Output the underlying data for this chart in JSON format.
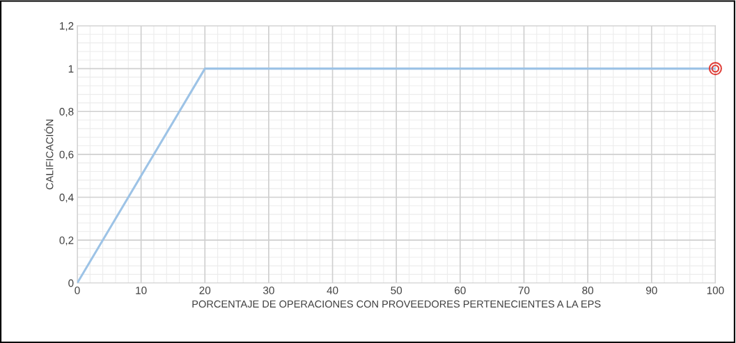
{
  "chart_data": {
    "type": "line",
    "xlabel": "PORCENTAJE DE OPERACIONES CON PROVEEDORES PERTENECIENTES A LA EPS",
    "ylabel": "CALIFICACIÓN",
    "series": [
      {
        "color": "#9dc3e6",
        "x": [
          0,
          20,
          100
        ],
        "values": [
          0,
          1,
          1
        ],
        "marker": "none"
      },
      {
        "type": "scatter",
        "color": "#e0403a",
        "x": [
          100
        ],
        "values": [
          1
        ],
        "marker": "circle"
      }
    ],
    "xlim": [
      0,
      100
    ],
    "xticks": [
      0,
      10,
      20,
      30,
      40,
      50,
      60,
      70,
      80,
      90,
      100
    ],
    "ylim": [
      0,
      1.2
    ],
    "yticks": [
      0,
      {
        "value": 0.2,
        "label": "0,2"
      },
      {
        "value": 0.4,
        "label": "0,4"
      },
      {
        "value": 0.6,
        "label": "0,6"
      },
      {
        "value": 0.8,
        "label": "0,8"
      },
      1,
      {
        "value": 1.2,
        "label": "1,2"
      }
    ],
    "grid": true
  }
}
